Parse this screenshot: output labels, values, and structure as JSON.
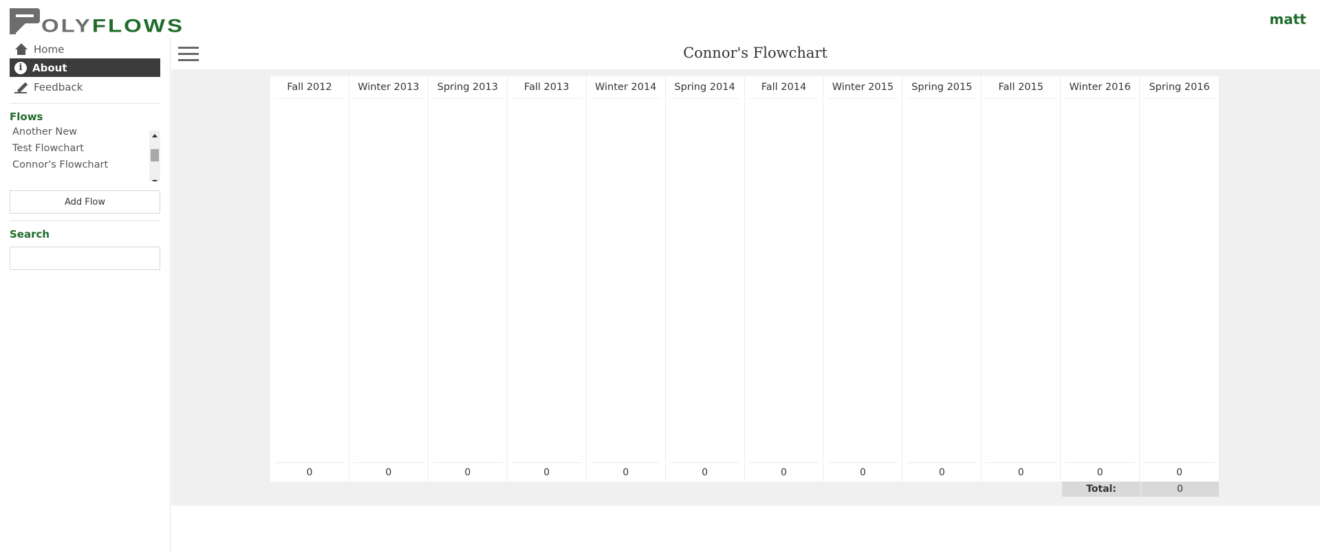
{
  "header": {
    "logo_text_1": "OLY",
    "logo_text_2": "FLOWS",
    "username": "matt"
  },
  "sidebar": {
    "nav": [
      {
        "label": "Home",
        "icon": "home-icon"
      },
      {
        "label": "About",
        "icon": "info-icon",
        "active": true
      },
      {
        "label": "Feedback",
        "icon": "pencil-icon"
      }
    ],
    "flows_title": "Flows",
    "flows": [
      "Another New",
      "Test Flowchart",
      "Connor's Flowchart"
    ],
    "add_flow_label": "Add Flow",
    "search_title": "Search",
    "search_value": ""
  },
  "main": {
    "title": "Connor's Flowchart",
    "columns": [
      {
        "term": "Fall 2012",
        "units": "0"
      },
      {
        "term": "Winter 2013",
        "units": "0"
      },
      {
        "term": "Spring 2013",
        "units": "0"
      },
      {
        "term": "Fall 2013",
        "units": "0"
      },
      {
        "term": "Winter 2014",
        "units": "0"
      },
      {
        "term": "Spring 2014",
        "units": "0"
      },
      {
        "term": "Fall 2014",
        "units": "0"
      },
      {
        "term": "Winter 2015",
        "units": "0"
      },
      {
        "term": "Spring 2015",
        "units": "0"
      },
      {
        "term": "Fall 2015",
        "units": "0"
      },
      {
        "term": "Winter 2016",
        "units": "0"
      },
      {
        "term": "Spring 2016",
        "units": "0"
      }
    ],
    "total_label": "Total:",
    "total_value": "0"
  },
  "colors": {
    "brand_green": "#1f6b2a",
    "logo_gray": "#6d6d6d",
    "active_nav_bg": "#3c3c3c"
  }
}
